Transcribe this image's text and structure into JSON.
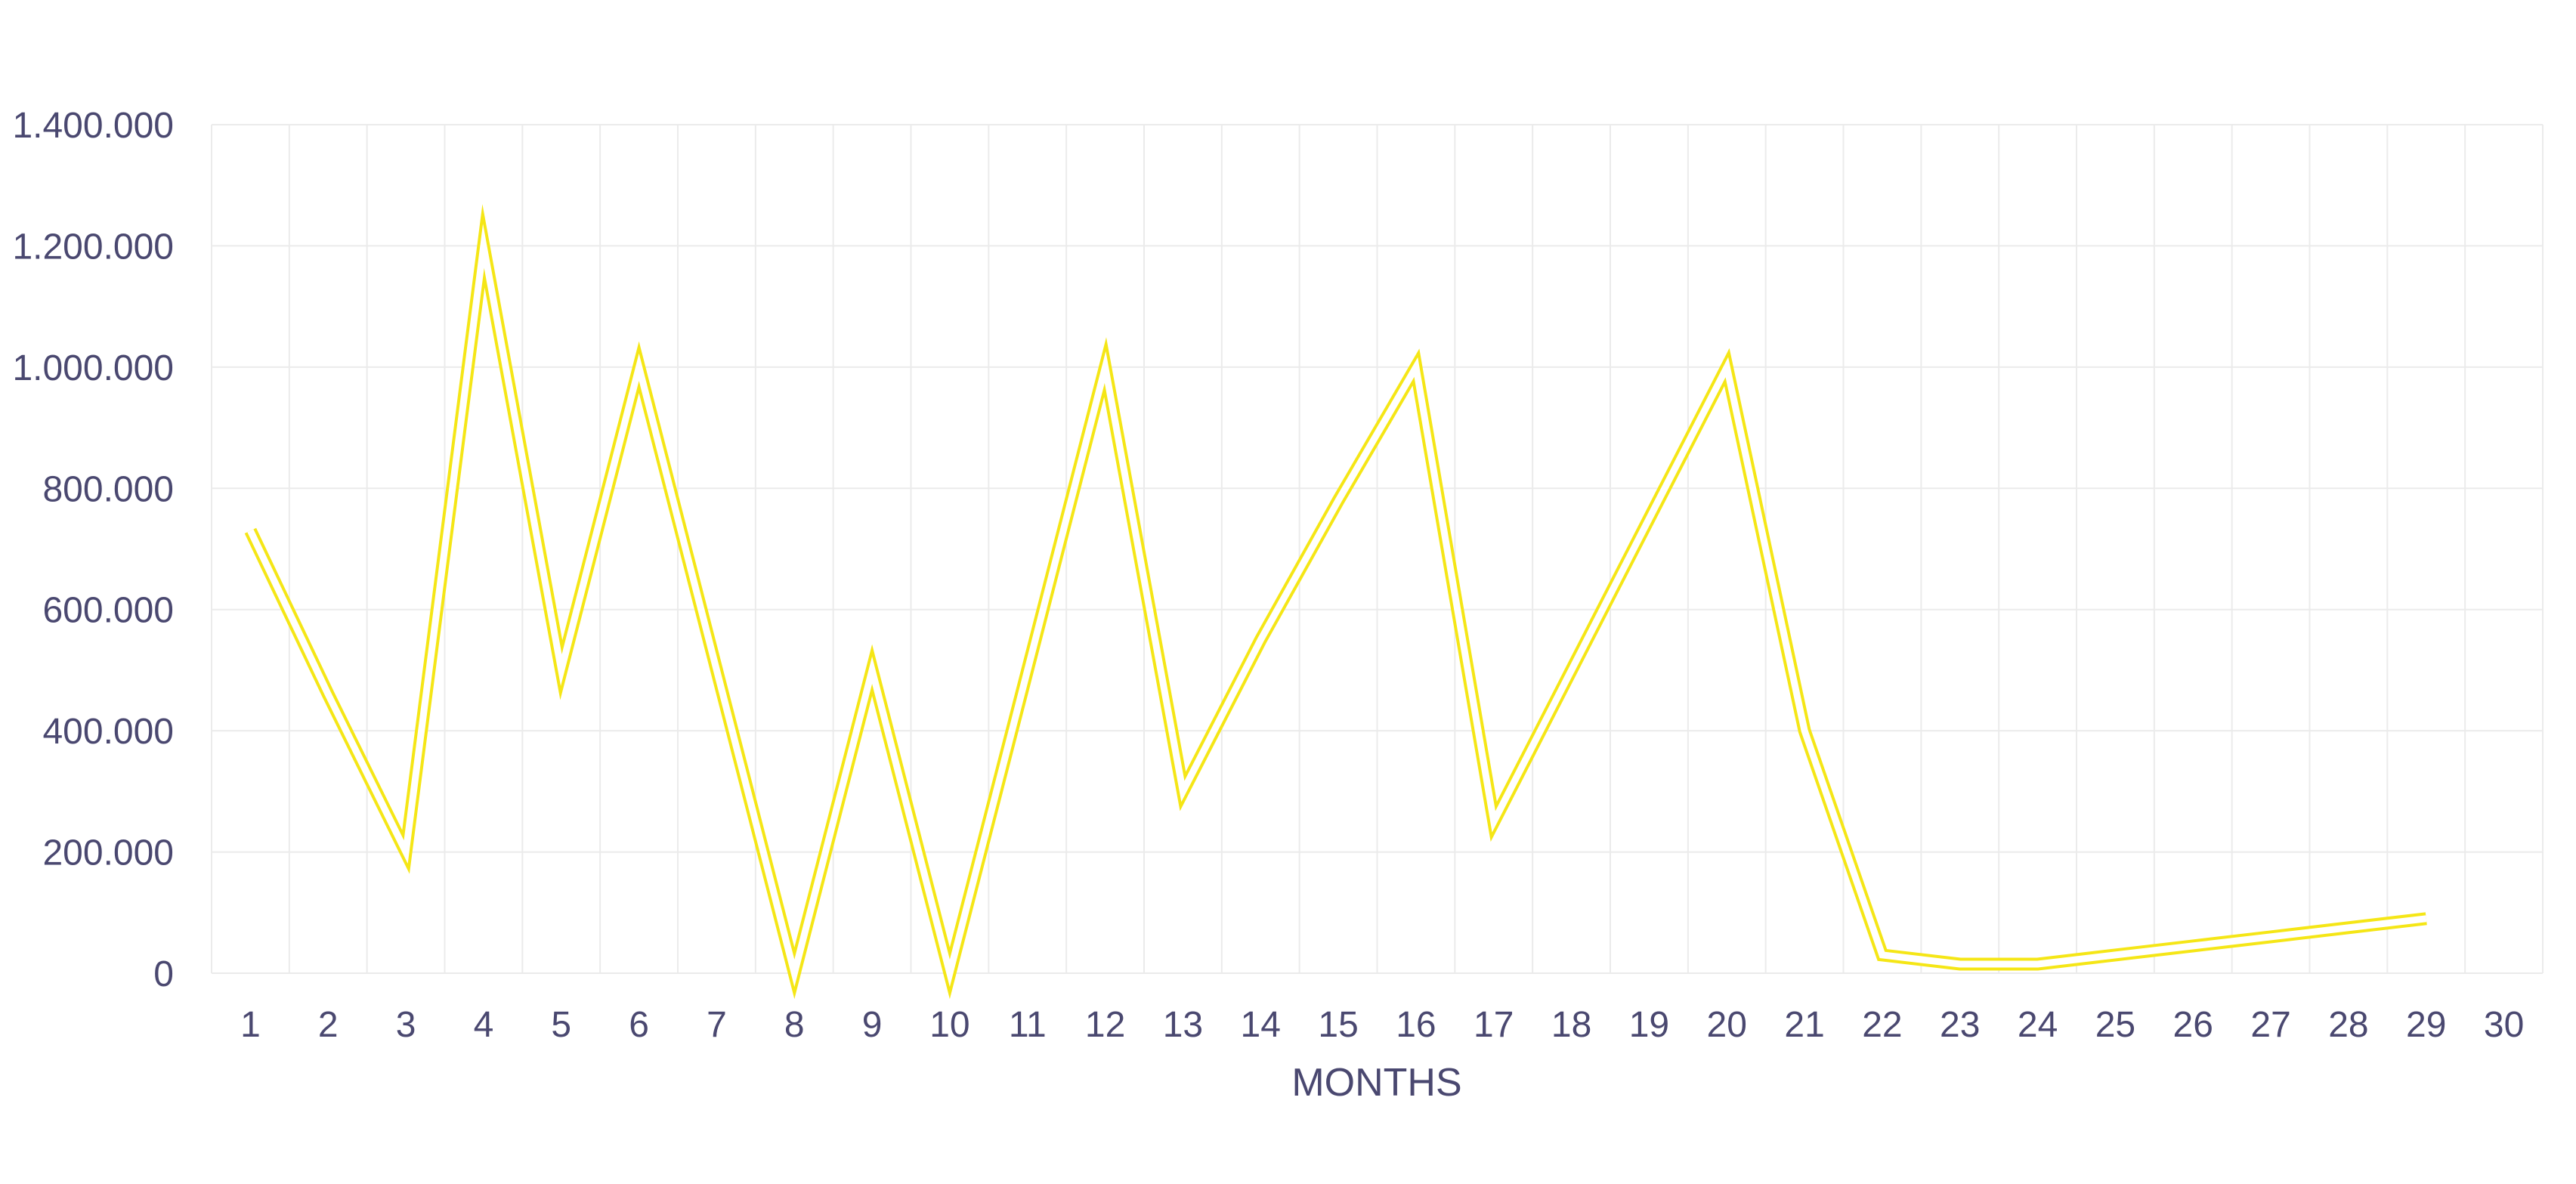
{
  "chart_data": {
    "type": "line",
    "title": "",
    "xlabel": "MONTHS",
    "ylabel": "",
    "x": [
      "1",
      "2",
      "3",
      "4",
      "5",
      "6",
      "7",
      "8",
      "9",
      "10",
      "11",
      "12",
      "13",
      "14",
      "15",
      "16",
      "17",
      "18",
      "19",
      "20",
      "21",
      "22",
      "23",
      "24",
      "25",
      "26",
      "27",
      "28",
      "29",
      "30"
    ],
    "series": [
      {
        "color": "#f5e616",
        "style": "double-line",
        "values": [
          730000,
          460000,
          200000,
          1200000,
          500000,
          1000000,
          500000,
          0,
          500000,
          0,
          500000,
          1000000,
          300000,
          550000,
          780000,
          1000000,
          250000,
          500000,
          750000,
          1000000,
          400000,
          30000,
          15000,
          15000,
          30000,
          45000,
          60000,
          75000,
          90000,
          null
        ]
      }
    ],
    "yticks": [
      "0",
      "200.000",
      "400.000",
      "600.000",
      "800.000",
      "1.000.000",
      "1.200.000",
      "1.400.000"
    ],
    "ylim": [
      0,
      1400000
    ],
    "grid": true,
    "legend": "none"
  }
}
